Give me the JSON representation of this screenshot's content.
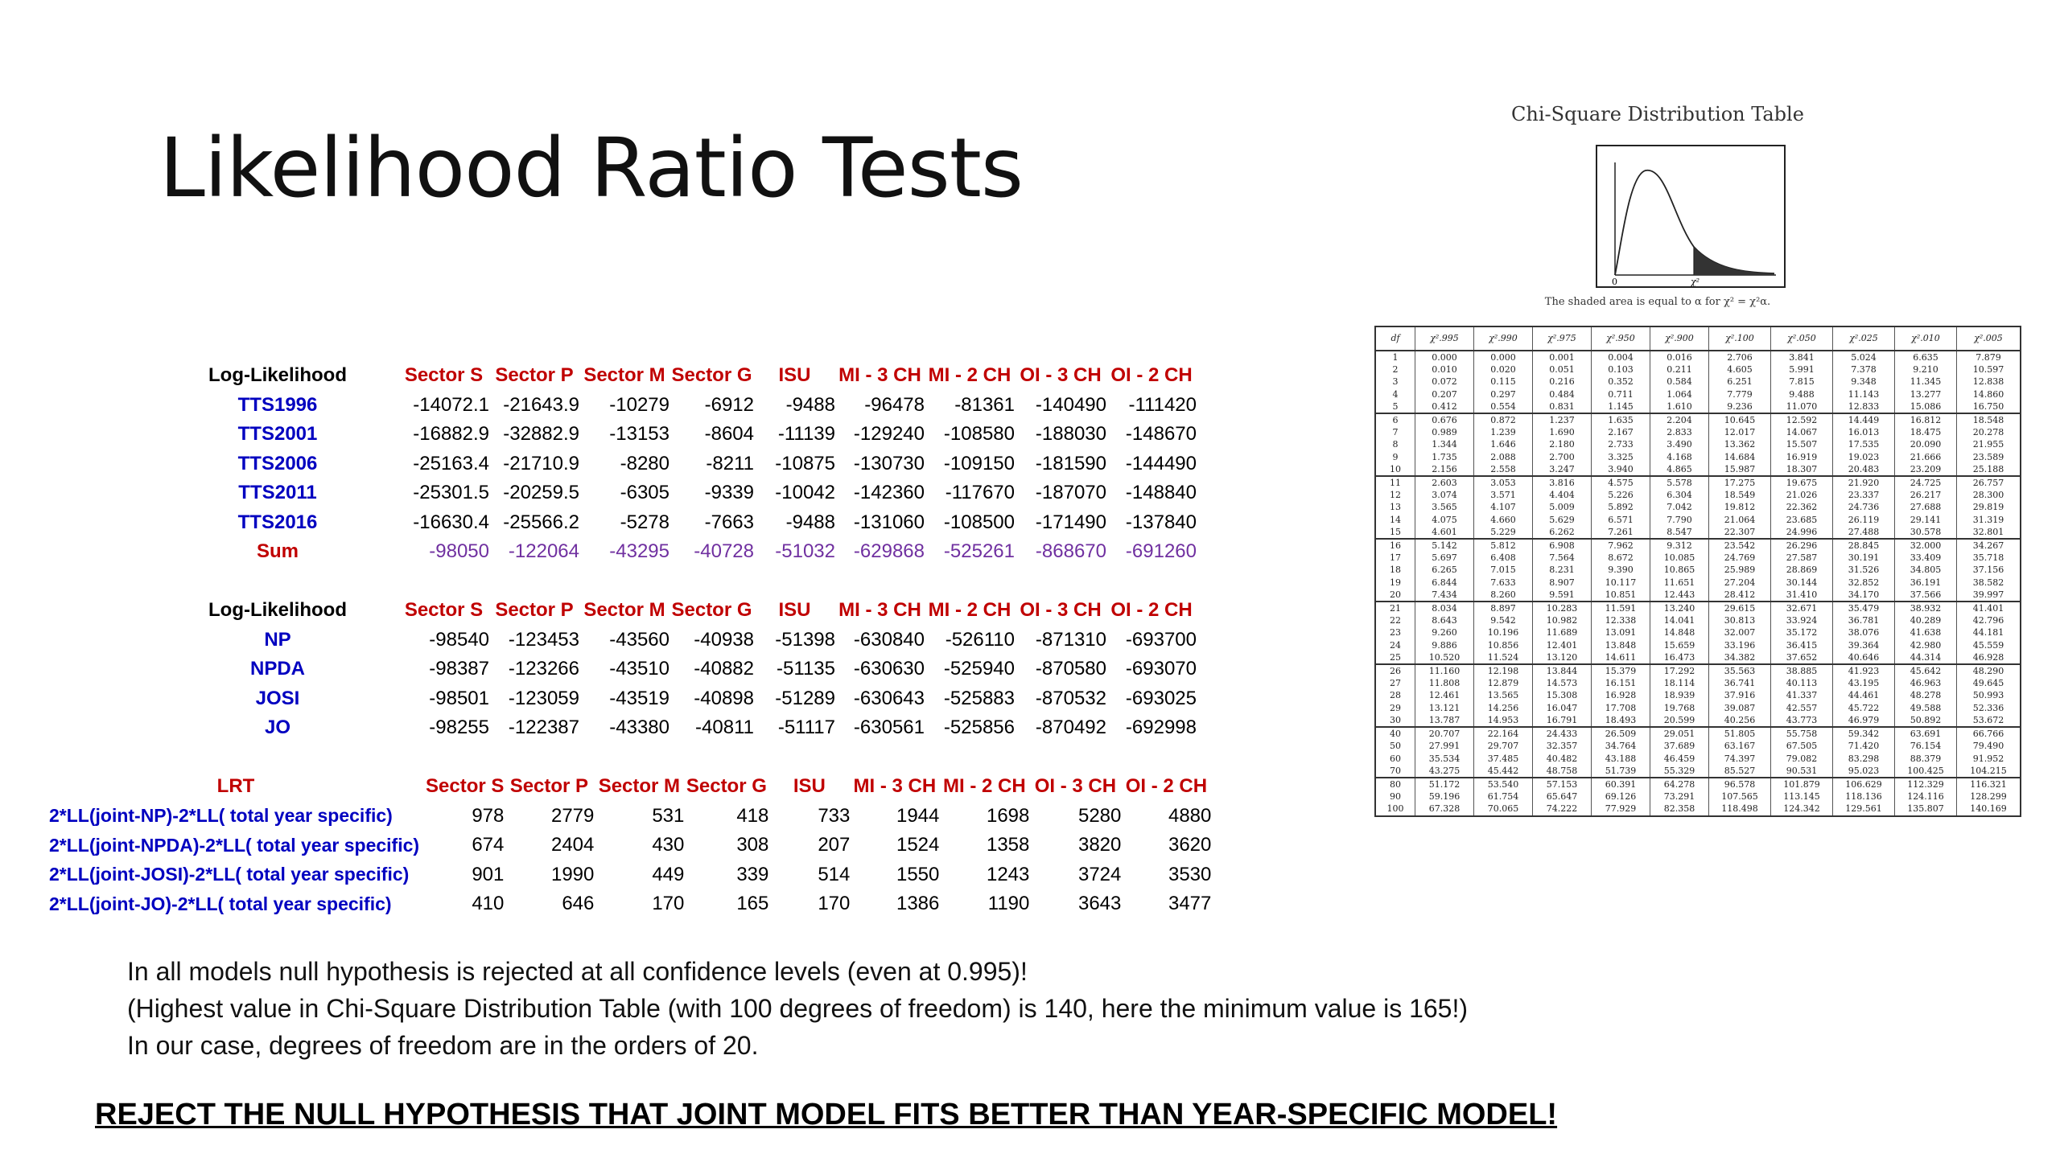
{
  "title": "Likelihood Ratio Tests",
  "columns": [
    "Sector S",
    "Sector P",
    "Sector M",
    "Sector G",
    "ISU",
    "MI - 3 CH",
    "MI - 2 CH",
    "OI - 3 CH",
    "OI - 2 CH"
  ],
  "table1": {
    "header": "Log-Likelihood",
    "rows": [
      {
        "label": "TTS1996",
        "values": [
          "-14072.1",
          "-21643.9",
          "-10279",
          "-6912",
          "-9488",
          "-96478",
          "-81361",
          "-140490",
          "-111420"
        ]
      },
      {
        "label": "TTS2001",
        "values": [
          "-16882.9",
          "-32882.9",
          "-13153",
          "-8604",
          "-11139",
          "-129240",
          "-108580",
          "-188030",
          "-148670"
        ]
      },
      {
        "label": "TTS2006",
        "values": [
          "-25163.4",
          "-21710.9",
          "-8280",
          "-8211",
          "-10875",
          "-130730",
          "-109150",
          "-181590",
          "-144490"
        ]
      },
      {
        "label": "TTS2011",
        "values": [
          "-25301.5",
          "-20259.5",
          "-6305",
          "-9339",
          "-10042",
          "-142360",
          "-117670",
          "-187070",
          "-148840"
        ]
      },
      {
        "label": "TTS2016",
        "values": [
          "-16630.4",
          "-25566.2",
          "-5278",
          "-7663",
          "-9488",
          "-131060",
          "-108500",
          "-171490",
          "-137840"
        ]
      },
      {
        "label": "Sum",
        "values": [
          "-98050",
          "-122064",
          "-43295",
          "-40728",
          "-51032",
          "-629868",
          "-525261",
          "-868670",
          "-691260"
        ]
      }
    ]
  },
  "table2": {
    "header": "Log-Likelihood",
    "rows": [
      {
        "label": "NP",
        "values": [
          "-98540",
          "-123453",
          "-43560",
          "-40938",
          "-51398",
          "-630840",
          "-526110",
          "-871310",
          "-693700"
        ]
      },
      {
        "label": "NPDA",
        "values": [
          "-98387",
          "-123266",
          "-43510",
          "-40882",
          "-51135",
          "-630630",
          "-525940",
          "-870580",
          "-693070"
        ]
      },
      {
        "label": "JOSI",
        "values": [
          "-98501",
          "-123059",
          "-43519",
          "-40898",
          "-51289",
          "-630643",
          "-525883",
          "-870532",
          "-693025"
        ]
      },
      {
        "label": "JO",
        "values": [
          "-98255",
          "-122387",
          "-43380",
          "-40811",
          "-51117",
          "-630561",
          "-525856",
          "-870492",
          "-692998"
        ]
      }
    ]
  },
  "table3": {
    "header": "LRT",
    "rows": [
      {
        "label": "2*LL(joint-NP)-2*LL( total year specific)",
        "values": [
          "978",
          "2779",
          "531",
          "418",
          "733",
          "1944",
          "1698",
          "5280",
          "4880"
        ]
      },
      {
        "label": "2*LL(joint-NPDA)-2*LL( total year specific)",
        "values": [
          "674",
          "2404",
          "430",
          "308",
          "207",
          "1524",
          "1358",
          "3820",
          "3620"
        ]
      },
      {
        "label": "2*LL(joint-JOSI)-2*LL( total year specific)",
        "values": [
          "901",
          "1990",
          "449",
          "339",
          "514",
          "1550",
          "1243",
          "3724",
          "3530"
        ]
      },
      {
        "label": "2*LL(joint-JO)-2*LL( total year specific)",
        "values": [
          "410",
          "646",
          "170",
          "165",
          "170",
          "1386",
          "1190",
          "3643",
          "3477"
        ]
      }
    ]
  },
  "notes": [
    "In all models null hypothesis is rejected at all confidence levels (even at 0.995)!",
    "(Highest value in Chi-Square Distribution Table (with 100 degrees of freedom) is 140, here the minimum value is 165!)",
    "In our case, degrees of freedom are in the orders of 20."
  ],
  "conclusion": "REJECT THE NULL HYPOTHESIS THAT JOINT MODEL FITS BETTER THAN YEAR-SPECIFIC MODEL!",
  "chi_table": {
    "title": "Chi-Square Distribution Table",
    "caption": "The shaded area is equal to α for χ² = χ²α.",
    "header": [
      "df",
      "χ².995",
      "χ².990",
      "χ².975",
      "χ².950",
      "χ².900",
      "χ².100",
      "χ².050",
      "χ².025",
      "χ².010",
      "χ².005"
    ],
    "rows": [
      [
        "1",
        "0.000",
        "0.000",
        "0.001",
        "0.004",
        "0.016",
        "2.706",
        "3.841",
        "5.024",
        "6.635",
        "7.879"
      ],
      [
        "2",
        "0.010",
        "0.020",
        "0.051",
        "0.103",
        "0.211",
        "4.605",
        "5.991",
        "7.378",
        "9.210",
        "10.597"
      ],
      [
        "3",
        "0.072",
        "0.115",
        "0.216",
        "0.352",
        "0.584",
        "6.251",
        "7.815",
        "9.348",
        "11.345",
        "12.838"
      ],
      [
        "4",
        "0.207",
        "0.297",
        "0.484",
        "0.711",
        "1.064",
        "7.779",
        "9.488",
        "11.143",
        "13.277",
        "14.860"
      ],
      [
        "5",
        "0.412",
        "0.554",
        "0.831",
        "1.145",
        "1.610",
        "9.236",
        "11.070",
        "12.833",
        "15.086",
        "16.750"
      ],
      [
        "6",
        "0.676",
        "0.872",
        "1.237",
        "1.635",
        "2.204",
        "10.645",
        "12.592",
        "14.449",
        "16.812",
        "18.548"
      ],
      [
        "7",
        "0.989",
        "1.239",
        "1.690",
        "2.167",
        "2.833",
        "12.017",
        "14.067",
        "16.013",
        "18.475",
        "20.278"
      ],
      [
        "8",
        "1.344",
        "1.646",
        "2.180",
        "2.733",
        "3.490",
        "13.362",
        "15.507",
        "17.535",
        "20.090",
        "21.955"
      ],
      [
        "9",
        "1.735",
        "2.088",
        "2.700",
        "3.325",
        "4.168",
        "14.684",
        "16.919",
        "19.023",
        "21.666",
        "23.589"
      ],
      [
        "10",
        "2.156",
        "2.558",
        "3.247",
        "3.940",
        "4.865",
        "15.987",
        "18.307",
        "20.483",
        "23.209",
        "25.188"
      ],
      [
        "11",
        "2.603",
        "3.053",
        "3.816",
        "4.575",
        "5.578",
        "17.275",
        "19.675",
        "21.920",
        "24.725",
        "26.757"
      ],
      [
        "12",
        "3.074",
        "3.571",
        "4.404",
        "5.226",
        "6.304",
        "18.549",
        "21.026",
        "23.337",
        "26.217",
        "28.300"
      ],
      [
        "13",
        "3.565",
        "4.107",
        "5.009",
        "5.892",
        "7.042",
        "19.812",
        "22.362",
        "24.736",
        "27.688",
        "29.819"
      ],
      [
        "14",
        "4.075",
        "4.660",
        "5.629",
        "6.571",
        "7.790",
        "21.064",
        "23.685",
        "26.119",
        "29.141",
        "31.319"
      ],
      [
        "15",
        "4.601",
        "5.229",
        "6.262",
        "7.261",
        "8.547",
        "22.307",
        "24.996",
        "27.488",
        "30.578",
        "32.801"
      ],
      [
        "16",
        "5.142",
        "5.812",
        "6.908",
        "7.962",
        "9.312",
        "23.542",
        "26.296",
        "28.845",
        "32.000",
        "34.267"
      ],
      [
        "17",
        "5.697",
        "6.408",
        "7.564",
        "8.672",
        "10.085",
        "24.769",
        "27.587",
        "30.191",
        "33.409",
        "35.718"
      ],
      [
        "18",
        "6.265",
        "7.015",
        "8.231",
        "9.390",
        "10.865",
        "25.989",
        "28.869",
        "31.526",
        "34.805",
        "37.156"
      ],
      [
        "19",
        "6.844",
        "7.633",
        "8.907",
        "10.117",
        "11.651",
        "27.204",
        "30.144",
        "32.852",
        "36.191",
        "38.582"
      ],
      [
        "20",
        "7.434",
        "8.260",
        "9.591",
        "10.851",
        "12.443",
        "28.412",
        "31.410",
        "34.170",
        "37.566",
        "39.997"
      ],
      [
        "21",
        "8.034",
        "8.897",
        "10.283",
        "11.591",
        "13.240",
        "29.615",
        "32.671",
        "35.479",
        "38.932",
        "41.401"
      ],
      [
        "22",
        "8.643",
        "9.542",
        "10.982",
        "12.338",
        "14.041",
        "30.813",
        "33.924",
        "36.781",
        "40.289",
        "42.796"
      ],
      [
        "23",
        "9.260",
        "10.196",
        "11.689",
        "13.091",
        "14.848",
        "32.007",
        "35.172",
        "38.076",
        "41.638",
        "44.181"
      ],
      [
        "24",
        "9.886",
        "10.856",
        "12.401",
        "13.848",
        "15.659",
        "33.196",
        "36.415",
        "39.364",
        "42.980",
        "45.559"
      ],
      [
        "25",
        "10.520",
        "11.524",
        "13.120",
        "14.611",
        "16.473",
        "34.382",
        "37.652",
        "40.646",
        "44.314",
        "46.928"
      ],
      [
        "26",
        "11.160",
        "12.198",
        "13.844",
        "15.379",
        "17.292",
        "35.563",
        "38.885",
        "41.923",
        "45.642",
        "48.290"
      ],
      [
        "27",
        "11.808",
        "12.879",
        "14.573",
        "16.151",
        "18.114",
        "36.741",
        "40.113",
        "43.195",
        "46.963",
        "49.645"
      ],
      [
        "28",
        "12.461",
        "13.565",
        "15.308",
        "16.928",
        "18.939",
        "37.916",
        "41.337",
        "44.461",
        "48.278",
        "50.993"
      ],
      [
        "29",
        "13.121",
        "14.256",
        "16.047",
        "17.708",
        "19.768",
        "39.087",
        "42.557",
        "45.722",
        "49.588",
        "52.336"
      ],
      [
        "30",
        "13.787",
        "14.953",
        "16.791",
        "18.493",
        "20.599",
        "40.256",
        "43.773",
        "46.979",
        "50.892",
        "53.672"
      ],
      [
        "40",
        "20.707",
        "22.164",
        "24.433",
        "26.509",
        "29.051",
        "51.805",
        "55.758",
        "59.342",
        "63.691",
        "66.766"
      ],
      [
        "50",
        "27.991",
        "29.707",
        "32.357",
        "34.764",
        "37.689",
        "63.167",
        "67.505",
        "71.420",
        "76.154",
        "79.490"
      ],
      [
        "60",
        "35.534",
        "37.485",
        "40.482",
        "43.188",
        "46.459",
        "74.397",
        "79.082",
        "83.298",
        "88.379",
        "91.952"
      ],
      [
        "70",
        "43.275",
        "45.442",
        "48.758",
        "51.739",
        "55.329",
        "85.527",
        "90.531",
        "95.023",
        "100.425",
        "104.215"
      ],
      [
        "80",
        "51.172",
        "53.540",
        "57.153",
        "60.391",
        "64.278",
        "96.578",
        "101.879",
        "106.629",
        "112.329",
        "116.321"
      ],
      [
        "90",
        "59.196",
        "61.754",
        "65.647",
        "69.126",
        "73.291",
        "107.565",
        "113.145",
        "118.136",
        "124.116",
        "128.299"
      ],
      [
        "100",
        "67.328",
        "70.065",
        "74.222",
        "77.929",
        "82.358",
        "118.498",
        "124.342",
        "129.561",
        "135.807",
        "140.169"
      ]
    ]
  }
}
